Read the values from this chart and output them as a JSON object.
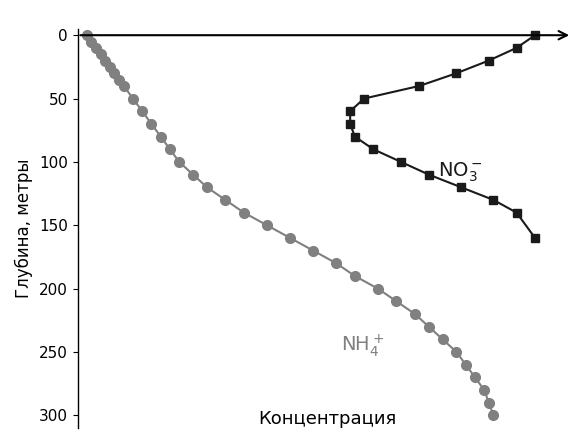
{
  "title_x": "Концентрация",
  "ylabel": "Глубина, метры",
  "ylim": [
    310,
    -5
  ],
  "xlim": [
    -0.02,
    1.05
  ],
  "background_color": "#ffffff",
  "no3_depths": [
    0,
    10,
    20,
    30,
    40,
    50,
    60,
    70,
    80,
    90,
    100,
    110,
    120,
    130,
    140,
    160
  ],
  "no3_conc": [
    0.97,
    0.93,
    0.87,
    0.8,
    0.72,
    0.6,
    0.57,
    0.57,
    0.58,
    0.62,
    0.68,
    0.74,
    0.81,
    0.88,
    0.93,
    0.97
  ],
  "nh4_depths": [
    0,
    5,
    10,
    15,
    20,
    25,
    30,
    35,
    40,
    50,
    60,
    70,
    80,
    90,
    100,
    110,
    120,
    130,
    140,
    150,
    160,
    170,
    180,
    190,
    200,
    210,
    220,
    230,
    240,
    250,
    260,
    270,
    280,
    290,
    300
  ],
  "nh4_conc": [
    0.0,
    0.01,
    0.02,
    0.03,
    0.04,
    0.05,
    0.06,
    0.07,
    0.08,
    0.1,
    0.12,
    0.14,
    0.16,
    0.18,
    0.2,
    0.23,
    0.26,
    0.3,
    0.34,
    0.39,
    0.44,
    0.49,
    0.54,
    0.58,
    0.63,
    0.67,
    0.71,
    0.74,
    0.77,
    0.8,
    0.82,
    0.84,
    0.86,
    0.87,
    0.88
  ],
  "no3_label": "NO$_3^-$",
  "nh4_label": "NH$_4^+$",
  "no3_color": "#1a1a1a",
  "nh4_color": "#808080",
  "yticks": [
    0,
    50,
    100,
    150,
    200,
    250,
    300
  ],
  "tick_fontsize": 11,
  "label_fontsize": 12,
  "title_fontsize": 13,
  "annot_fontsize": 14
}
